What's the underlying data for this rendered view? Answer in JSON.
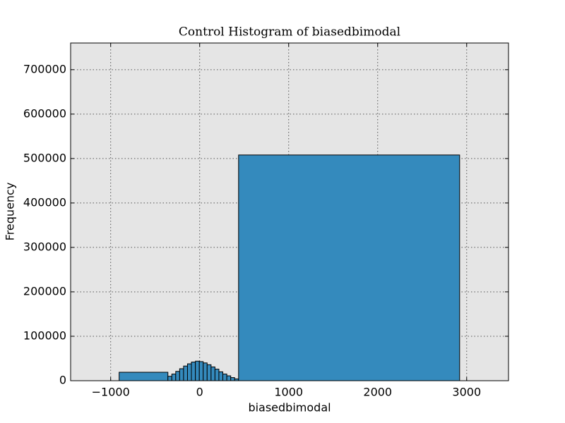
{
  "chart_data": {
    "type": "histogram",
    "title": "Control Histogram of biasedbimodal",
    "x_label": "biasedbimodal",
    "y_label": "Frequency",
    "bins": [
      -905,
      -357,
      -313,
      -269,
      -225,
      -181,
      -137,
      -93,
      -48,
      -4,
      40,
      84,
      128,
      172,
      216,
      260,
      305,
      349,
      393,
      437,
      2921
    ],
    "counts": [
      19000,
      10000,
      15000,
      21000,
      27000,
      33000,
      38000,
      42000,
      44000,
      43000,
      40000,
      36000,
      31000,
      26000,
      20000,
      15000,
      11000,
      7000,
      4000,
      508000
    ],
    "color": "#348abd",
    "xlim": [
      -1450,
      3470
    ],
    "ylim": [
      0,
      760000
    ],
    "xticks": [
      {
        "value": -1000,
        "label": "−1000"
      },
      0,
      1000,
      2000,
      3000
    ],
    "yticks": [
      0,
      100000,
      200000,
      300000,
      400000,
      500000,
      600000,
      700000
    ],
    "grid": true
  }
}
